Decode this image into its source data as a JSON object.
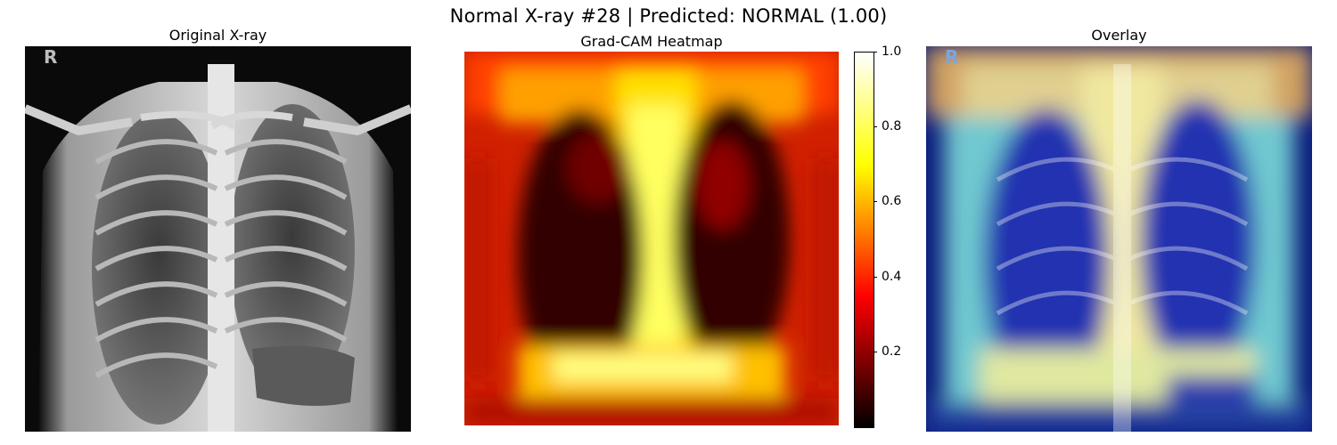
{
  "title": "Normal X-ray #28 | Predicted: NORMAL (1.00)",
  "panels": {
    "original": {
      "title": "Original X-ray",
      "corner_marker": "R"
    },
    "heatmap": {
      "title": "Grad-CAM Heatmap"
    },
    "overlay": {
      "title": "Overlay",
      "corner_marker": "R"
    }
  },
  "colors": {
    "heat_low": "#000000",
    "heat_mid": "#ff0000",
    "heat_high_mid": "#ffff00",
    "heat_top": "#ffffff",
    "overlay_low": "#00008b",
    "overlay_high": "#ff6666"
  },
  "chart_data": [
    {
      "type": "image",
      "title": "Original X-ray",
      "content": "grayscale chest X-ray (PA view)"
    },
    {
      "type": "heatmap",
      "title": "Grad-CAM Heatmap",
      "colormap": "hot",
      "colorbar": {
        "ticks": [
          "0.2",
          "0.4",
          "0.6",
          "0.8",
          "1.0"
        ],
        "range": [
          0.0,
          1.0
        ]
      }
    },
    {
      "type": "image",
      "title": "Overlay",
      "content": "Grad-CAM heatmap (jet colormap) blended over the X-ray"
    }
  ]
}
